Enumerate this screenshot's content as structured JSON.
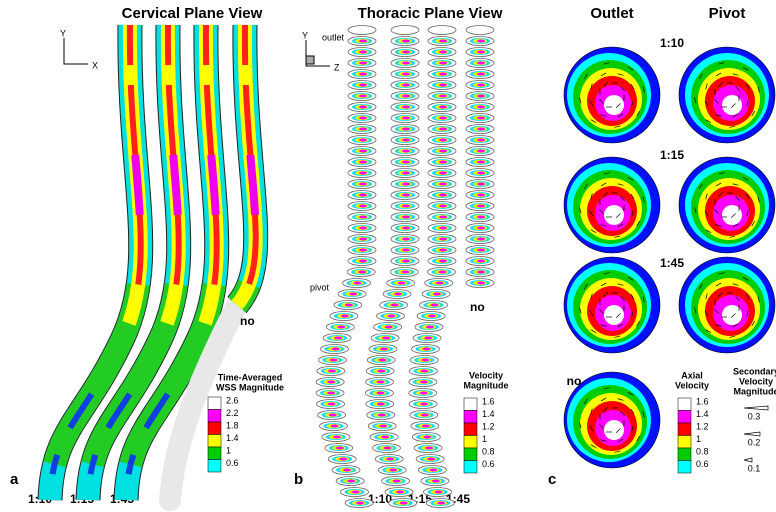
{
  "panel_a": {
    "title": "Cervical Plane View",
    "letter": "a",
    "axis_y": "Y",
    "axis_x": "X",
    "tube_label": "no",
    "bottom_labels": [
      "1:10",
      "1:15",
      "1:45"
    ],
    "legend": {
      "title_lines": [
        "Time-Averaged",
        "WSS Magnitude"
      ],
      "ticks": [
        "2.6",
        "2.2",
        "1.8",
        "1.4",
        "1",
        "0.6"
      ]
    }
  },
  "panel_b": {
    "title": "Thoracic Plane View",
    "letter": "b",
    "axis_y": "Y",
    "axis_z": "Z",
    "outlet_label": "outlet",
    "pivot_label": "pivot",
    "tube_label": "no",
    "bottom_labels": [
      "1:10",
      "1:15",
      "1:45"
    ],
    "legend": {
      "title_lines": [
        "Velocity",
        "Magnitude"
      ],
      "ticks": [
        "1.6",
        "1.4",
        "1.2",
        "1",
        "0.8",
        "0.6"
      ]
    }
  },
  "panel_c": {
    "letter": "c",
    "column_titles": [
      "Outlet",
      "Pivot"
    ],
    "row_labels": [
      "1:10",
      "1:15",
      "1:45",
      "no"
    ],
    "axial_legend": {
      "title_lines": [
        "Axial",
        "Velocity"
      ],
      "ticks": [
        "1.6",
        "1.4",
        "1.2",
        "1",
        "0.8",
        "0.6"
      ]
    },
    "secondary_legend": {
      "title_lines": [
        "Secondary",
        "Velocity",
        "Magnitude"
      ],
      "ticks": [
        "0.3",
        "0.2",
        "0.1"
      ]
    }
  }
}
